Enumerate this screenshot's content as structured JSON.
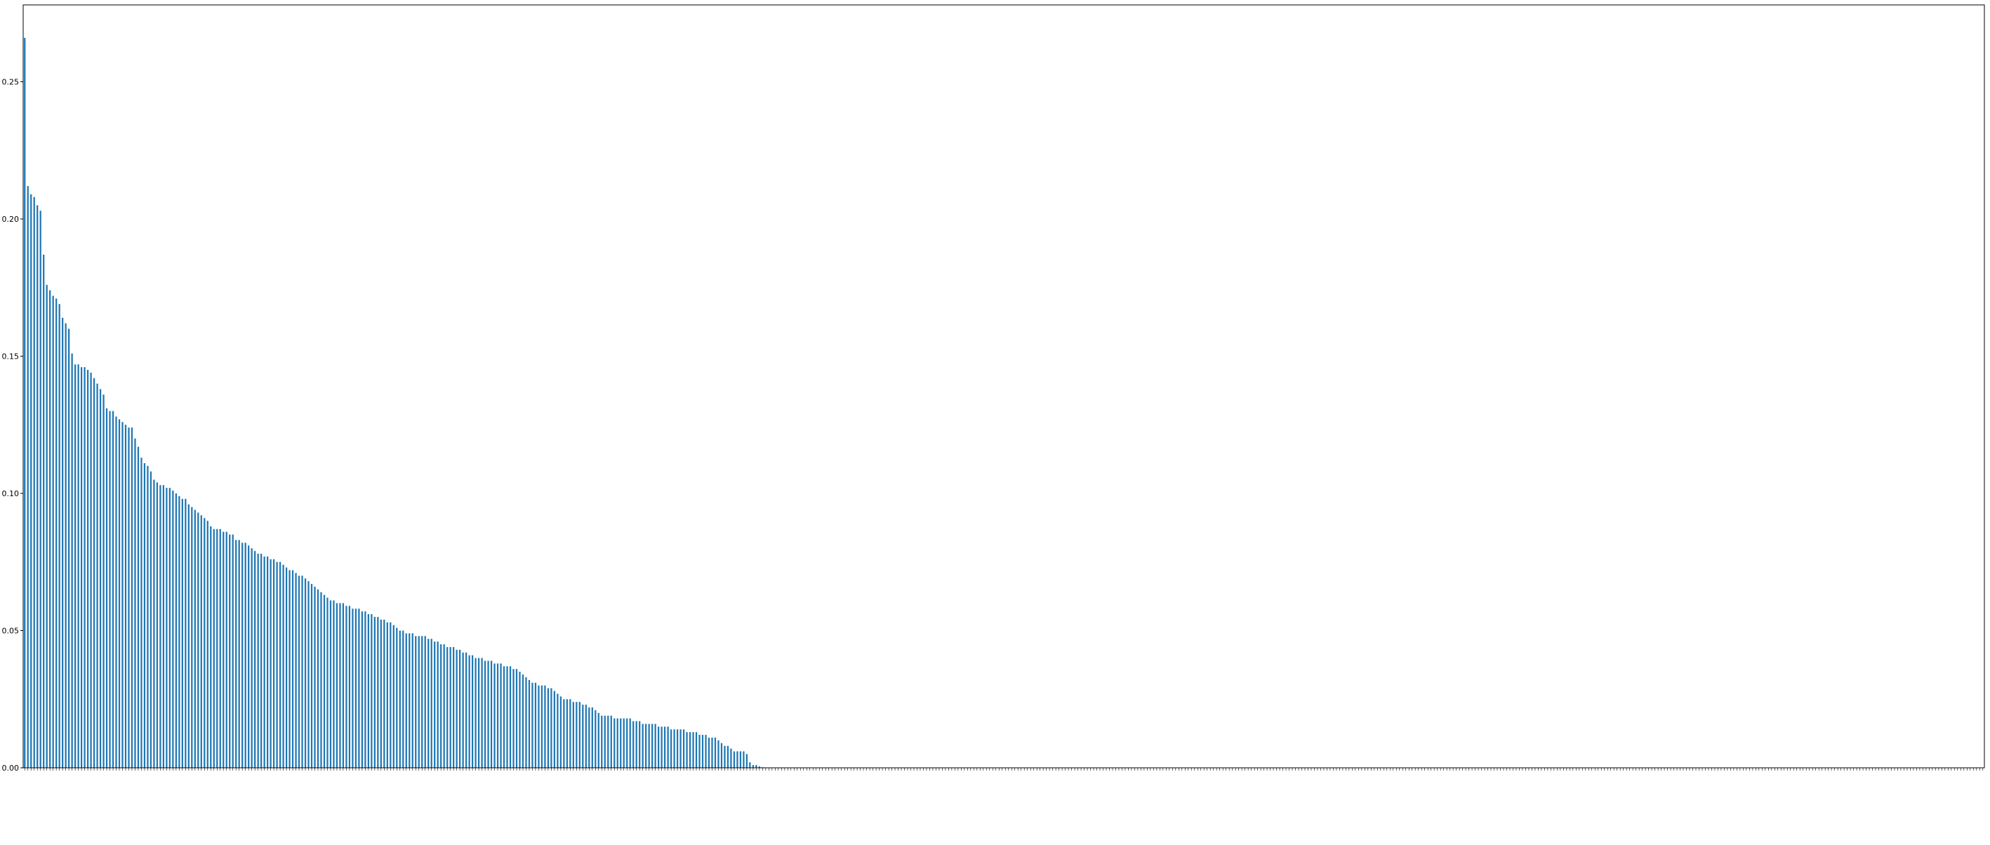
{
  "chart_data": {
    "type": "bar",
    "title": "",
    "xlabel": "",
    "ylabel": "",
    "ylim": [
      0,
      0.278
    ],
    "y_ticks": [
      "0.00",
      "0.05",
      "0.10",
      "0.15",
      "0.20",
      "0.25"
    ],
    "grid": false,
    "bar_color": "#1f77b4",
    "x_tick_labels": "bar labels too small to read",
    "values": [
      0.266,
      0.212,
      0.209,
      0.208,
      0.205,
      0.203,
      0.187,
      0.176,
      0.174,
      0.172,
      0.171,
      0.169,
      0.164,
      0.162,
      0.16,
      0.151,
      0.147,
      0.147,
      0.146,
      0.146,
      0.145,
      0.144,
      0.142,
      0.14,
      0.138,
      0.136,
      0.131,
      0.13,
      0.13,
      0.128,
      0.127,
      0.126,
      0.125,
      0.124,
      0.124,
      0.12,
      0.117,
      0.113,
      0.111,
      0.11,
      0.108,
      0.105,
      0.104,
      0.103,
      0.103,
      0.102,
      0.102,
      0.101,
      0.1,
      0.099,
      0.098,
      0.098,
      0.096,
      0.095,
      0.094,
      0.093,
      0.092,
      0.091,
      0.09,
      0.088,
      0.087,
      0.087,
      0.087,
      0.086,
      0.086,
      0.085,
      0.085,
      0.083,
      0.083,
      0.082,
      0.082,
      0.081,
      0.08,
      0.079,
      0.078,
      0.078,
      0.077,
      0.077,
      0.076,
      0.076,
      0.075,
      0.075,
      0.074,
      0.073,
      0.072,
      0.072,
      0.071,
      0.07,
      0.07,
      0.069,
      0.068,
      0.067,
      0.066,
      0.065,
      0.064,
      0.063,
      0.062,
      0.061,
      0.061,
      0.06,
      0.06,
      0.06,
      0.059,
      0.059,
      0.058,
      0.058,
      0.058,
      0.057,
      0.057,
      0.056,
      0.056,
      0.055,
      0.055,
      0.054,
      0.054,
      0.053,
      0.053,
      0.052,
      0.051,
      0.05,
      0.05,
      0.049,
      0.049,
      0.049,
      0.048,
      0.048,
      0.048,
      0.048,
      0.047,
      0.047,
      0.046,
      0.046,
      0.045,
      0.045,
      0.044,
      0.044,
      0.044,
      0.043,
      0.043,
      0.042,
      0.042,
      0.041,
      0.041,
      0.04,
      0.04,
      0.04,
      0.039,
      0.039,
      0.039,
      0.038,
      0.038,
      0.038,
      0.037,
      0.037,
      0.037,
      0.036,
      0.036,
      0.035,
      0.034,
      0.033,
      0.032,
      0.031,
      0.031,
      0.03,
      0.03,
      0.03,
      0.029,
      0.029,
      0.028,
      0.027,
      0.026,
      0.025,
      0.025,
      0.025,
      0.024,
      0.024,
      0.024,
      0.023,
      0.023,
      0.022,
      0.022,
      0.021,
      0.02,
      0.019,
      0.019,
      0.019,
      0.019,
      0.018,
      0.018,
      0.018,
      0.018,
      0.018,
      0.018,
      0.017,
      0.017,
      0.017,
      0.016,
      0.016,
      0.016,
      0.016,
      0.016,
      0.015,
      0.015,
      0.015,
      0.015,
      0.014,
      0.014,
      0.014,
      0.014,
      0.014,
      0.013,
      0.013,
      0.013,
      0.013,
      0.012,
      0.012,
      0.012,
      0.011,
      0.011,
      0.011,
      0.01,
      0.009,
      0.008,
      0.008,
      0.007,
      0.006,
      0.006,
      0.006,
      0.006,
      0.005,
      0.002,
      0.001,
      0.001,
      0.0005,
      0.0002,
      0.0001,
      0.0001,
      0.0001,
      0.0001,
      0.0001,
      0.0001,
      0.0001,
      0.0001,
      0.0001,
      0.0001,
      0.0001,
      0.0001,
      0.0001,
      0.0001,
      0.0001,
      0.0001,
      0.0001,
      0.0001,
      0.0001,
      0.0001,
      0.0001,
      0.0001,
      0.0001,
      0.0001,
      0.0001,
      0.0001,
      0.0001,
      0.0001,
      0.0001,
      0.0001,
      0.0001,
      0.0001,
      0.0001,
      0.0001,
      0.0001,
      0.0001,
      0.0001,
      0.0001,
      0.0001,
      0.0001,
      0.0001,
      0.0001,
      0.0001,
      0.0001,
      0.0001,
      0.0001,
      0.0001,
      0.0001,
      0.0001,
      0.0001,
      0.0001,
      0.0001,
      0.0001,
      0.0001,
      0.0001,
      0.0001,
      0.0001,
      0.0001,
      0.0001,
      0.0001,
      0.0001,
      0.0001,
      0.0001,
      0.0001,
      0.0001,
      0.0001,
      0.0001,
      0.0001,
      0.0001,
      0.0001,
      0.0001,
      0.0001,
      0.0001,
      0.0001,
      0.0001,
      0.0001,
      0.0001,
      0.0001,
      0.0001,
      0.0001,
      0.0001,
      0.0001,
      0.0001,
      0.0001,
      0.0001,
      0.0001,
      0.0001,
      0.0001,
      0.0001,
      0.0001,
      0.0001,
      0.0001,
      0.0001,
      0.0001,
      0.0001,
      0.0001,
      0.0001,
      0.0001,
      0.0001,
      0.0001,
      0.0001,
      0.0001,
      0.0001,
      0.0001,
      0.0001,
      0.0001,
      0.0001,
      0.0001,
      0.0001,
      0.0001,
      0.0001,
      0.0001,
      0.0001,
      0.0001,
      0.0001,
      0.0001,
      0.0001,
      0.0001,
      0.0001,
      0.0001,
      0.0001,
      0.0001,
      0.0001,
      0.0001,
      0.0001,
      0.0001,
      0.0001,
      0.0001,
      0.0001,
      0.0001,
      0.0001,
      0.0001,
      0.0001,
      0.0001,
      0.0001,
      0.0001,
      0.0001,
      0.0001,
      0.0001,
      0.0001,
      0.0001,
      0.0001,
      0.0001,
      0.0001,
      0.0001,
      0.0001,
      0.0001,
      0.0001,
      0.0001,
      0.0001,
      0.0001,
      0.0001,
      0.0001,
      0.0001,
      0.0001,
      0.0001,
      0.0001,
      0.0001,
      0.0001,
      0.0001,
      0.0001,
      0.0001,
      0.0001,
      0.0001,
      0.0001,
      0.0001,
      0.0001,
      0.0001,
      0.0001,
      0.0001,
      0.0001,
      0.0001,
      0.0001,
      0.0001,
      0.0001,
      0.0001,
      0.0001,
      0.0001,
      0.0001,
      0.0001,
      0.0001,
      0.0001,
      0.0001,
      0.0001,
      0.0001,
      0.0001,
      0.0001,
      0.0001,
      0.0001,
      0.0001,
      0.0001,
      0.0001,
      0.0001,
      0.0001,
      0.0001,
      0.0001,
      0.0001,
      0.0001,
      0.0001,
      0.0001,
      0.0001,
      0.0001,
      0.0001,
      0.0001,
      0.0001,
      0.0001,
      0.0001,
      0.0001,
      0.0001,
      0.0001,
      0.0001,
      0.0001,
      0.0001,
      0.0001,
      0.0001,
      0.0001,
      0.0001,
      0.0001,
      0.0001,
      0.0001,
      0.0001,
      0.0001,
      0.0001,
      0.0001,
      0.0001,
      0.0001,
      0.0001,
      0.0001,
      0.0001,
      0.0001,
      0.0001,
      0.0001,
      0.0001,
      0.0001,
      0.0001,
      0.0001,
      0.0001,
      0.0001,
      0.0001,
      0.0001,
      0.0001,
      0.0001,
      0.0001,
      0.0001,
      0.0001,
      0.0001,
      0.0001,
      0.0001,
      0.0001,
      0.0001,
      0.0001,
      0.0001,
      0.0001,
      0.0001,
      0.0001,
      0.0001,
      0.0001,
      0.0001,
      0.0001,
      0.0001,
      0.0001,
      0.0001,
      0.0001,
      0.0001,
      0.0001,
      0.0001,
      0.0001,
      0.0001,
      0.0001,
      0.0001,
      0.0001,
      0.0001,
      0.0001,
      0.0001,
      0.0001,
      0.0001,
      0.0001,
      0.0001,
      0.0001,
      0.0001,
      0.0001,
      0.0001,
      0.0001,
      0.0001,
      0.0001,
      0.0001,
      0.0001,
      0.0001,
      0.0001,
      0.0001,
      0.0001,
      0.0001,
      0.0001,
      0.0001,
      0.0001,
      0.0001,
      0.0001,
      0.0001,
      0.0001,
      0.0001,
      0.0001,
      0.0001,
      0.0001,
      0.0001,
      0.0001,
      0.0001,
      0.0001,
      0.0001,
      0.0001,
      0.0001,
      0.0001,
      0.0001,
      0.0001,
      0.0001,
      0.0001,
      0.0001,
      0.0001,
      0.0001,
      0.0001,
      0.0001,
      0.0001,
      0.0001,
      0.0001,
      0.0001,
      0.0001,
      0.0001,
      0.0001,
      0.0001,
      0.0001,
      0.0001,
      0.0001,
      0.0001,
      0.0001,
      0.0001,
      0.0001,
      0.0001,
      0.0001,
      0.0001,
      0.0001,
      0.0001,
      0.0001,
      0.0001,
      0.0001,
      0.0001,
      0.0001,
      0.0001,
      0.0001,
      0.0001,
      0.0001,
      0.0001,
      0.0001,
      0.0001,
      0.0001,
      0.0001,
      0.0001,
      0.0001,
      0.0001,
      0.0001,
      0.0001,
      0.0001,
      0.0001,
      0.0001,
      0.0001,
      0.0001,
      0.0001,
      0.0001,
      0.0001,
      0.0001,
      0.0001,
      0.0001,
      0.0001,
      0.0001,
      0.0001,
      0.0001,
      0.0001,
      0.0001,
      0.0001,
      0.0001,
      0.0001,
      0.0001,
      0.0001,
      0.0001,
      0.0001,
      0.0001,
      0.0001,
      0.0001,
      0.0001
    ]
  }
}
